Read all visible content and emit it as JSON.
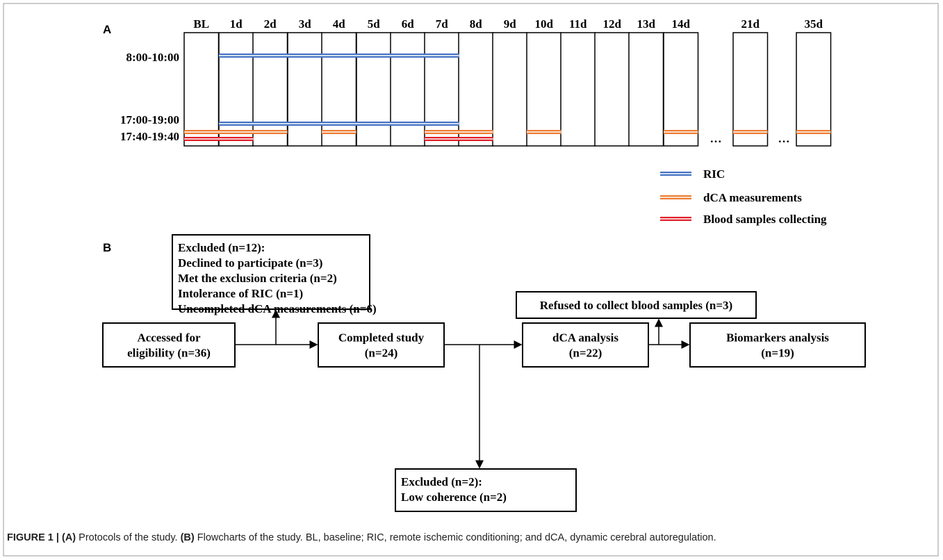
{
  "panel_a": {
    "label": "A",
    "columns": [
      "BL",
      "1d",
      "2d",
      "3d",
      "4d",
      "5d",
      "6d",
      "7d",
      "8d",
      "9d",
      "10d",
      "11d",
      "12d",
      "13d",
      "14d",
      "21d",
      "35d"
    ],
    "gaps": [
      "…",
      "…"
    ],
    "rows": [
      "8:00-10:00",
      "17:00-19:00",
      "17:40-19:40"
    ],
    "legend": [
      "RIC",
      "dCA measurements",
      "Blood samples collecting"
    ]
  },
  "panel_b": {
    "label": "B",
    "nodes": [
      {
        "lines": [
          "Excluded (n=12):",
          "Declined to participate (n=3)",
          "Met the exclusion criteria (n=2)",
          "Intolerance of RIC (n=1)",
          "Uncompleted dCA measurements (n=6)"
        ]
      },
      {
        "lines": [
          "Accessed for",
          "eligibility (n=36)"
        ]
      },
      {
        "lines": [
          "Completed study",
          "(n=24)"
        ]
      },
      {
        "lines": [
          "dCA analysis",
          "(n=22)"
        ]
      },
      {
        "lines": [
          "Biomarkers analysis",
          "(n=19)"
        ]
      },
      {
        "lines": [
          "Refused to collect blood samples (n=3)"
        ]
      },
      {
        "lines": [
          "Excluded (n=2):",
          "Low coherence (n=2)"
        ]
      }
    ]
  },
  "caption": {
    "label": "FIGURE 1 |",
    "parts": [
      "(A)",
      " Protocols of the study. ",
      "(B)",
      " Flowcharts of the study. BL, baseline; RIC, remote ischemic conditioning; and dCA, dynamic cerebral autoregulation."
    ]
  }
}
